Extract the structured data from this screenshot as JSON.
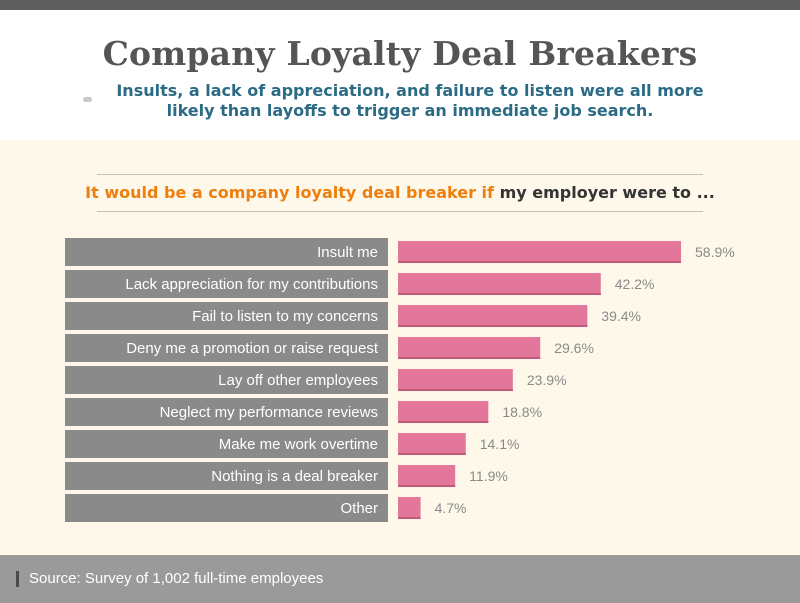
{
  "header": {
    "title": "Company Loyalty Deal Breakers",
    "subtitle": "Insults, a lack of appreciation, and failure to listen were all more likely than layoffs to trigger an immediate job search."
  },
  "question": {
    "highlight": "It would be a company loyalty deal breaker if",
    "rest": "my employer were to ..."
  },
  "footer": {
    "source": "Source: Survey of 1,002 full-time employees"
  },
  "colors": {
    "bar": "#e2779b",
    "bar_shadow": "#bf5a7c",
    "label_box": "#8a8a8a",
    "highlight": "#f07e0c",
    "subtitle": "#2c6b84"
  },
  "chart_data": {
    "type": "bar",
    "orientation": "horizontal",
    "categories": [
      "Insult me",
      "Lack appreciation for my contributions",
      "Fail to listen to my concerns",
      "Deny me a promotion or raise request",
      "Lay off other employees",
      "Neglect my performance reviews",
      "Make me work overtime",
      "Nothing is a deal breaker",
      "Other"
    ],
    "values": [
      58.9,
      42.2,
      39.4,
      29.6,
      23.9,
      18.8,
      14.1,
      11.9,
      4.7
    ],
    "value_labels": [
      "58.9%",
      "42.2%",
      "39.4%",
      "29.6%",
      "23.9%",
      "18.8%",
      "14.1%",
      "11.9%",
      "4.7%"
    ],
    "unit": "%",
    "xlim": [
      0,
      60
    ]
  }
}
